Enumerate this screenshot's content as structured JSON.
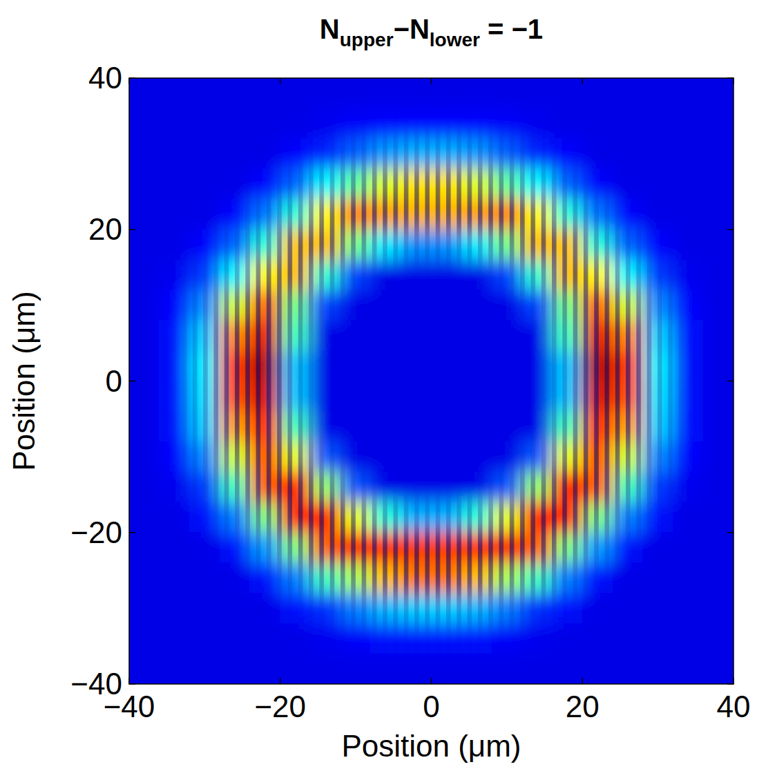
{
  "chart_data": {
    "type": "heatmap",
    "title": [
      {
        "text": "N"
      },
      {
        "text": "upper",
        "subscript": true
      },
      {
        "text": "−N"
      },
      {
        "text": "lower",
        "subscript": true
      },
      {
        "text": " = −1"
      }
    ],
    "x_label": "Position (μm)",
    "y_label": "Position (μm)",
    "color": "jet",
    "zlim": [
      0,
      1
    ],
    "xlim": [
      -40,
      40
    ],
    "ylim": [
      -40,
      40
    ],
    "xticks": [
      {
        "value": -40,
        "label": "−40"
      },
      {
        "value": -20,
        "label": "−20"
      },
      0,
      20,
      40
    ],
    "yticks": [
      {
        "value": -40,
        "label": "−40"
      },
      {
        "value": -20,
        "label": "−20"
      },
      0,
      20,
      40
    ],
    "x": [
      -38,
      -34,
      -30,
      -26,
      -22,
      -18,
      -14,
      -10,
      -6,
      -2,
      2,
      6,
      10,
      14,
      18,
      22,
      26,
      30,
      34,
      38
    ],
    "y": [
      38,
      34,
      30,
      26,
      22,
      18,
      14,
      10,
      6,
      2,
      -2,
      -6,
      -10,
      -14,
      -18,
      -22,
      -26,
      -30,
      -34,
      -38
    ],
    "values": [
      [
        0.1,
        0.1,
        0.1,
        0.1,
        0.1,
        0.1,
        0.1,
        0.1,
        0.1,
        0.1,
        0.1,
        0.1,
        0.1,
        0.1,
        0.1,
        0.1,
        0.1,
        0.1,
        0.1,
        0.1
      ],
      [
        0.1,
        0.1,
        0.1,
        0.1,
        0.1,
        0.1,
        0.11,
        0.12,
        0.13,
        0.13,
        0.13,
        0.13,
        0.12,
        0.11,
        0.1,
        0.1,
        0.1,
        0.1,
        0.1,
        0.1
      ],
      [
        0.1,
        0.1,
        0.1,
        0.1,
        0.1,
        0.13,
        0.16,
        0.22,
        0.28,
        0.3,
        0.3,
        0.28,
        0.22,
        0.16,
        0.13,
        0.1,
        0.1,
        0.1,
        0.1,
        0.1
      ],
      [
        0.1,
        0.1,
        0.1,
        0.1,
        0.13,
        0.22,
        0.37,
        0.47,
        0.59,
        0.65,
        0.65,
        0.59,
        0.47,
        0.37,
        0.22,
        0.13,
        0.1,
        0.1,
        0.1,
        0.1
      ],
      [
        0.1,
        0.1,
        0.1,
        0.13,
        0.24,
        0.41,
        0.63,
        0.75,
        0.72,
        0.7,
        0.7,
        0.72,
        0.75,
        0.63,
        0.41,
        0.24,
        0.13,
        0.1,
        0.1,
        0.1
      ],
      [
        0.1,
        0.1,
        0.13,
        0.22,
        0.41,
        0.68,
        0.69,
        0.49,
        0.36,
        0.27,
        0.27,
        0.36,
        0.49,
        0.69,
        0.68,
        0.41,
        0.22,
        0.13,
        0.1,
        0.1
      ],
      [
        0.1,
        0.11,
        0.18,
        0.37,
        0.63,
        0.69,
        0.42,
        0.19,
        0.1,
        0.1,
        0.1,
        0.1,
        0.19,
        0.42,
        0.69,
        0.63,
        0.37,
        0.18,
        0.11,
        0.1
      ],
      [
        0.1,
        0.13,
        0.26,
        0.58,
        0.78,
        0.49,
        0.19,
        0.1,
        0.1,
        0.1,
        0.1,
        0.1,
        0.1,
        0.19,
        0.49,
        0.78,
        0.58,
        0.26,
        0.13,
        0.1
      ],
      [
        0.1,
        0.14,
        0.33,
        0.74,
        0.9,
        0.44,
        0.1,
        0.1,
        0.1,
        0.1,
        0.1,
        0.1,
        0.1,
        0.1,
        0.44,
        0.9,
        0.74,
        0.33,
        0.14,
        0.1
      ],
      [
        0.1,
        0.14,
        0.36,
        0.82,
        0.95,
        0.32,
        0.1,
        0.1,
        0.1,
        0.1,
        0.1,
        0.1,
        0.1,
        0.1,
        0.32,
        0.95,
        0.82,
        0.36,
        0.14,
        0.1
      ],
      [
        0.1,
        0.14,
        0.35,
        0.8,
        0.92,
        0.32,
        0.1,
        0.1,
        0.1,
        0.1,
        0.1,
        0.1,
        0.1,
        0.1,
        0.32,
        0.92,
        0.8,
        0.35,
        0.14,
        0.1
      ],
      [
        0.1,
        0.14,
        0.33,
        0.72,
        0.85,
        0.44,
        0.1,
        0.1,
        0.1,
        0.1,
        0.1,
        0.1,
        0.1,
        0.1,
        0.44,
        0.85,
        0.72,
        0.33,
        0.14,
        0.1
      ],
      [
        0.1,
        0.13,
        0.26,
        0.58,
        0.8,
        0.6,
        0.21,
        0.1,
        0.1,
        0.1,
        0.1,
        0.1,
        0.1,
        0.21,
        0.6,
        0.8,
        0.58,
        0.26,
        0.13,
        0.1
      ],
      [
        0.1,
        0.11,
        0.18,
        0.44,
        0.78,
        0.86,
        0.52,
        0.21,
        0.1,
        0.1,
        0.1,
        0.1,
        0.21,
        0.52,
        0.86,
        0.78,
        0.44,
        0.18,
        0.11,
        0.1
      ],
      [
        0.1,
        0.1,
        0.14,
        0.25,
        0.5,
        0.84,
        0.86,
        0.6,
        0.41,
        0.3,
        0.3,
        0.41,
        0.6,
        0.86,
        0.84,
        0.5,
        0.25,
        0.14,
        0.1,
        0.1
      ],
      [
        0.1,
        0.1,
        0.1,
        0.14,
        0.28,
        0.5,
        0.78,
        0.88,
        0.84,
        0.82,
        0.82,
        0.84,
        0.88,
        0.78,
        0.5,
        0.28,
        0.14,
        0.1,
        0.1,
        0.1
      ],
      [
        0.1,
        0.1,
        0.1,
        0.1,
        0.14,
        0.25,
        0.44,
        0.54,
        0.69,
        0.76,
        0.76,
        0.69,
        0.54,
        0.44,
        0.25,
        0.14,
        0.1,
        0.1,
        0.1,
        0.1
      ],
      [
        0.1,
        0.1,
        0.1,
        0.1,
        0.1,
        0.14,
        0.17,
        0.25,
        0.31,
        0.33,
        0.33,
        0.31,
        0.25,
        0.17,
        0.14,
        0.1,
        0.1,
        0.1,
        0.1,
        0.1
      ],
      [
        0.1,
        0.1,
        0.1,
        0.1,
        0.1,
        0.1,
        0.11,
        0.12,
        0.14,
        0.14,
        0.14,
        0.14,
        0.12,
        0.11,
        0.1,
        0.1,
        0.1,
        0.1,
        0.1,
        0.1
      ],
      [
        0.1,
        0.1,
        0.1,
        0.1,
        0.1,
        0.1,
        0.1,
        0.1,
        0.1,
        0.1,
        0.1,
        0.1,
        0.1,
        0.1,
        0.1,
        0.1,
        0.1,
        0.1,
        0.1,
        0.1
      ]
    ]
  }
}
